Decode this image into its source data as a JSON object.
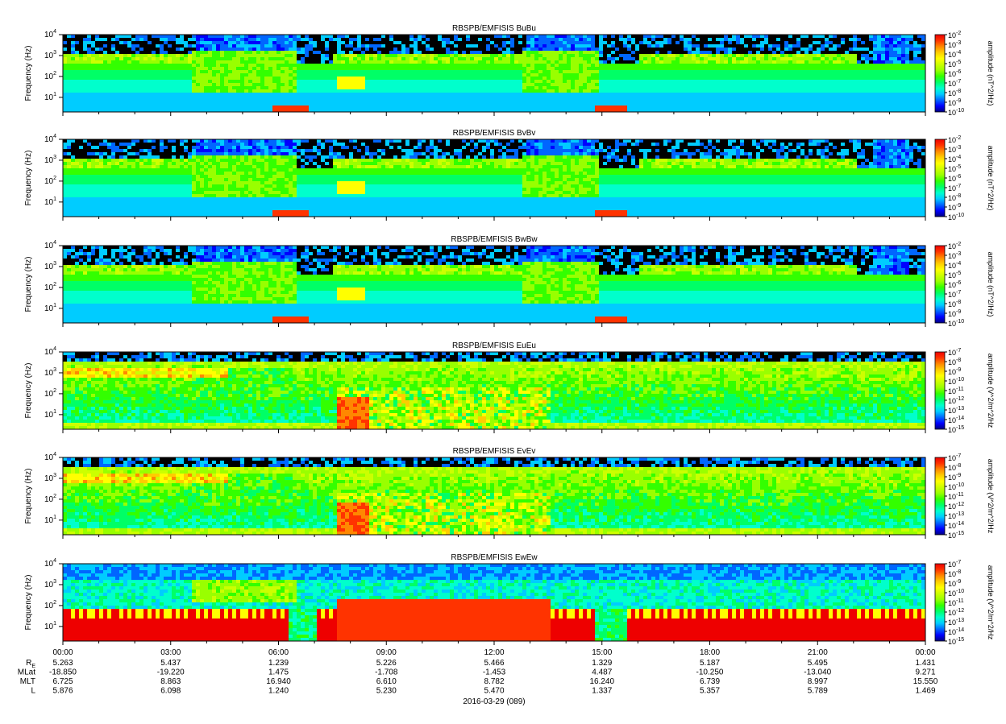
{
  "figure": {
    "date_label": "2016-03-29 (089)"
  },
  "colors": {
    "scale": [
      "#00007f",
      "#0000ff",
      "#0066ff",
      "#00ccff",
      "#00ffcc",
      "#00ff66",
      "#33ff00",
      "#99ff00",
      "#ccff00",
      "#ffff00",
      "#ffcc00",
      "#ff8800",
      "#ff3300",
      "#ee0000"
    ],
    "no_data": "#000000"
  },
  "chart_data": [
    {
      "type": "heatmap",
      "title": "RBSPB/EMFISIS  BuBu",
      "ylabel": "Frequency (Hz)",
      "yscale": "log",
      "ylim": [
        2,
        10000
      ],
      "y_ticks": [
        {
          "base": "10",
          "exp": "1"
        },
        {
          "base": "10",
          "exp": "2"
        },
        {
          "base": "10",
          "exp": "3"
        },
        {
          "base": "10",
          "exp": "4"
        }
      ],
      "colorbar": {
        "label": "amplitude (nT^2/Hz)",
        "ticks": [
          {
            "base": "10",
            "exp": "-2"
          },
          {
            "base": "10",
            "exp": "-3"
          },
          {
            "base": "10",
            "exp": "-4"
          },
          {
            "base": "10",
            "exp": "-5"
          },
          {
            "base": "10",
            "exp": "-6"
          },
          {
            "base": "10",
            "exp": "-7"
          },
          {
            "base": "10",
            "exp": "-8"
          },
          {
            "base": "10",
            "exp": "-9"
          },
          {
            "base": "10",
            "exp": "-10"
          }
        ]
      }
    },
    {
      "type": "heatmap",
      "title": "RBSPB/EMFISIS  BvBv",
      "ylabel": "Frequency (Hz)",
      "yscale": "log",
      "ylim": [
        2,
        10000
      ],
      "y_ticks": [
        {
          "base": "10",
          "exp": "1"
        },
        {
          "base": "10",
          "exp": "2"
        },
        {
          "base": "10",
          "exp": "3"
        },
        {
          "base": "10",
          "exp": "4"
        }
      ],
      "colorbar": {
        "label": "amplitude (nT^2/Hz)",
        "ticks": [
          {
            "base": "10",
            "exp": "-2"
          },
          {
            "base": "10",
            "exp": "-3"
          },
          {
            "base": "10",
            "exp": "-4"
          },
          {
            "base": "10",
            "exp": "-5"
          },
          {
            "base": "10",
            "exp": "-6"
          },
          {
            "base": "10",
            "exp": "-7"
          },
          {
            "base": "10",
            "exp": "-8"
          },
          {
            "base": "10",
            "exp": "-9"
          },
          {
            "base": "10",
            "exp": "-10"
          }
        ]
      }
    },
    {
      "type": "heatmap",
      "title": "RBSPB/EMFISIS  BwBw",
      "ylabel": "Frequency (Hz)",
      "yscale": "log",
      "ylim": [
        2,
        10000
      ],
      "y_ticks": [
        {
          "base": "10",
          "exp": "1"
        },
        {
          "base": "10",
          "exp": "2"
        },
        {
          "base": "10",
          "exp": "3"
        },
        {
          "base": "10",
          "exp": "4"
        }
      ],
      "colorbar": {
        "label": "amplitude (nT^2/Hz)",
        "ticks": [
          {
            "base": "10",
            "exp": "-2"
          },
          {
            "base": "10",
            "exp": "-3"
          },
          {
            "base": "10",
            "exp": "-4"
          },
          {
            "base": "10",
            "exp": "-5"
          },
          {
            "base": "10",
            "exp": "-6"
          },
          {
            "base": "10",
            "exp": "-7"
          },
          {
            "base": "10",
            "exp": "-8"
          },
          {
            "base": "10",
            "exp": "-9"
          },
          {
            "base": "10",
            "exp": "-10"
          }
        ]
      }
    },
    {
      "type": "heatmap",
      "title": "RBSPB/EMFISIS  EuEu",
      "ylabel": "Frequency (Hz)",
      "yscale": "log",
      "ylim": [
        2,
        10000
      ],
      "y_ticks": [
        {
          "base": "10",
          "exp": "1"
        },
        {
          "base": "10",
          "exp": "2"
        },
        {
          "base": "10",
          "exp": "3"
        },
        {
          "base": "10",
          "exp": "4"
        }
      ],
      "colorbar": {
        "label": "amplitude (V^2/m^2/Hz",
        "ticks": [
          {
            "base": "10",
            "exp": "-7"
          },
          {
            "base": "10",
            "exp": "-8"
          },
          {
            "base": "10",
            "exp": "-9"
          },
          {
            "base": "10",
            "exp": "-10"
          },
          {
            "base": "10",
            "exp": "-11"
          },
          {
            "base": "10",
            "exp": "-12"
          },
          {
            "base": "10",
            "exp": "-13"
          },
          {
            "base": "10",
            "exp": "-14"
          },
          {
            "base": "10",
            "exp": "-15"
          }
        ]
      }
    },
    {
      "type": "heatmap",
      "title": "RBSPB/EMFISIS  EvEv",
      "ylabel": "Frequency (Hz)",
      "yscale": "log",
      "ylim": [
        2,
        10000
      ],
      "y_ticks": [
        {
          "base": "10",
          "exp": "1"
        },
        {
          "base": "10",
          "exp": "2"
        },
        {
          "base": "10",
          "exp": "3"
        },
        {
          "base": "10",
          "exp": "4"
        }
      ],
      "colorbar": {
        "label": "amplitude (V^2/m^2/Hz",
        "ticks": [
          {
            "base": "10",
            "exp": "-7"
          },
          {
            "base": "10",
            "exp": "-8"
          },
          {
            "base": "10",
            "exp": "-9"
          },
          {
            "base": "10",
            "exp": "-10"
          },
          {
            "base": "10",
            "exp": "-11"
          },
          {
            "base": "10",
            "exp": "-12"
          },
          {
            "base": "10",
            "exp": "-13"
          },
          {
            "base": "10",
            "exp": "-14"
          },
          {
            "base": "10",
            "exp": "-15"
          }
        ]
      }
    },
    {
      "type": "heatmap",
      "title": "RBSPB/EMFISIS  EwEw",
      "ylabel": "Frequency (Hz)",
      "yscale": "log",
      "ylim": [
        2,
        10000
      ],
      "y_ticks": [
        {
          "base": "10",
          "exp": "1"
        },
        {
          "base": "10",
          "exp": "2"
        },
        {
          "base": "10",
          "exp": "3"
        },
        {
          "base": "10",
          "exp": "4"
        }
      ],
      "colorbar": {
        "label": "amplitude (V^2/m^2/Hz",
        "ticks": [
          {
            "base": "10",
            "exp": "-7"
          },
          {
            "base": "10",
            "exp": "-8"
          },
          {
            "base": "10",
            "exp": "-9"
          },
          {
            "base": "10",
            "exp": "-10"
          },
          {
            "base": "10",
            "exp": "-11"
          },
          {
            "base": "10",
            "exp": "-12"
          },
          {
            "base": "10",
            "exp": "-13"
          },
          {
            "base": "10",
            "exp": "-14"
          },
          {
            "base": "10",
            "exp": "-15"
          }
        ]
      }
    }
  ],
  "x_axis": {
    "range_hours": [
      0,
      24
    ],
    "ticks": [
      {
        "hour": 0,
        "label": "00:00"
      },
      {
        "hour": 3,
        "label": "03:00"
      },
      {
        "hour": 6,
        "label": "06:00"
      },
      {
        "hour": 9,
        "label": "09:00"
      },
      {
        "hour": 12,
        "label": "12:00"
      },
      {
        "hour": 15,
        "label": "15:00"
      },
      {
        "hour": 18,
        "label": "18:00"
      },
      {
        "hour": 21,
        "label": "21:00"
      },
      {
        "hour": 24,
        "label": "00:00"
      }
    ],
    "ephemeris": [
      {
        "name": "R",
        "sub": "E",
        "values": [
          "5.263",
          "5.437",
          "1.239",
          "5.226",
          "5.466",
          "1.329",
          "5.187",
          "5.495",
          "1.431"
        ]
      },
      {
        "name": "MLat",
        "sub": "",
        "values": [
          "-18.850",
          "-19.220",
          "1.475",
          "-1.708",
          "-1.453",
          "4.487",
          "-10.250",
          "-13.040",
          "9.271"
        ]
      },
      {
        "name": "MLT",
        "sub": "",
        "values": [
          "6.725",
          "8.863",
          "16.940",
          "6.610",
          "8.782",
          "16.240",
          "6.739",
          "8.997",
          "15.550"
        ]
      },
      {
        "name": "L",
        "sub": "",
        "values": [
          "5.876",
          "6.098",
          "1.240",
          "5.230",
          "5.470",
          "1.337",
          "5.357",
          "5.789",
          "1.469"
        ]
      }
    ]
  }
}
